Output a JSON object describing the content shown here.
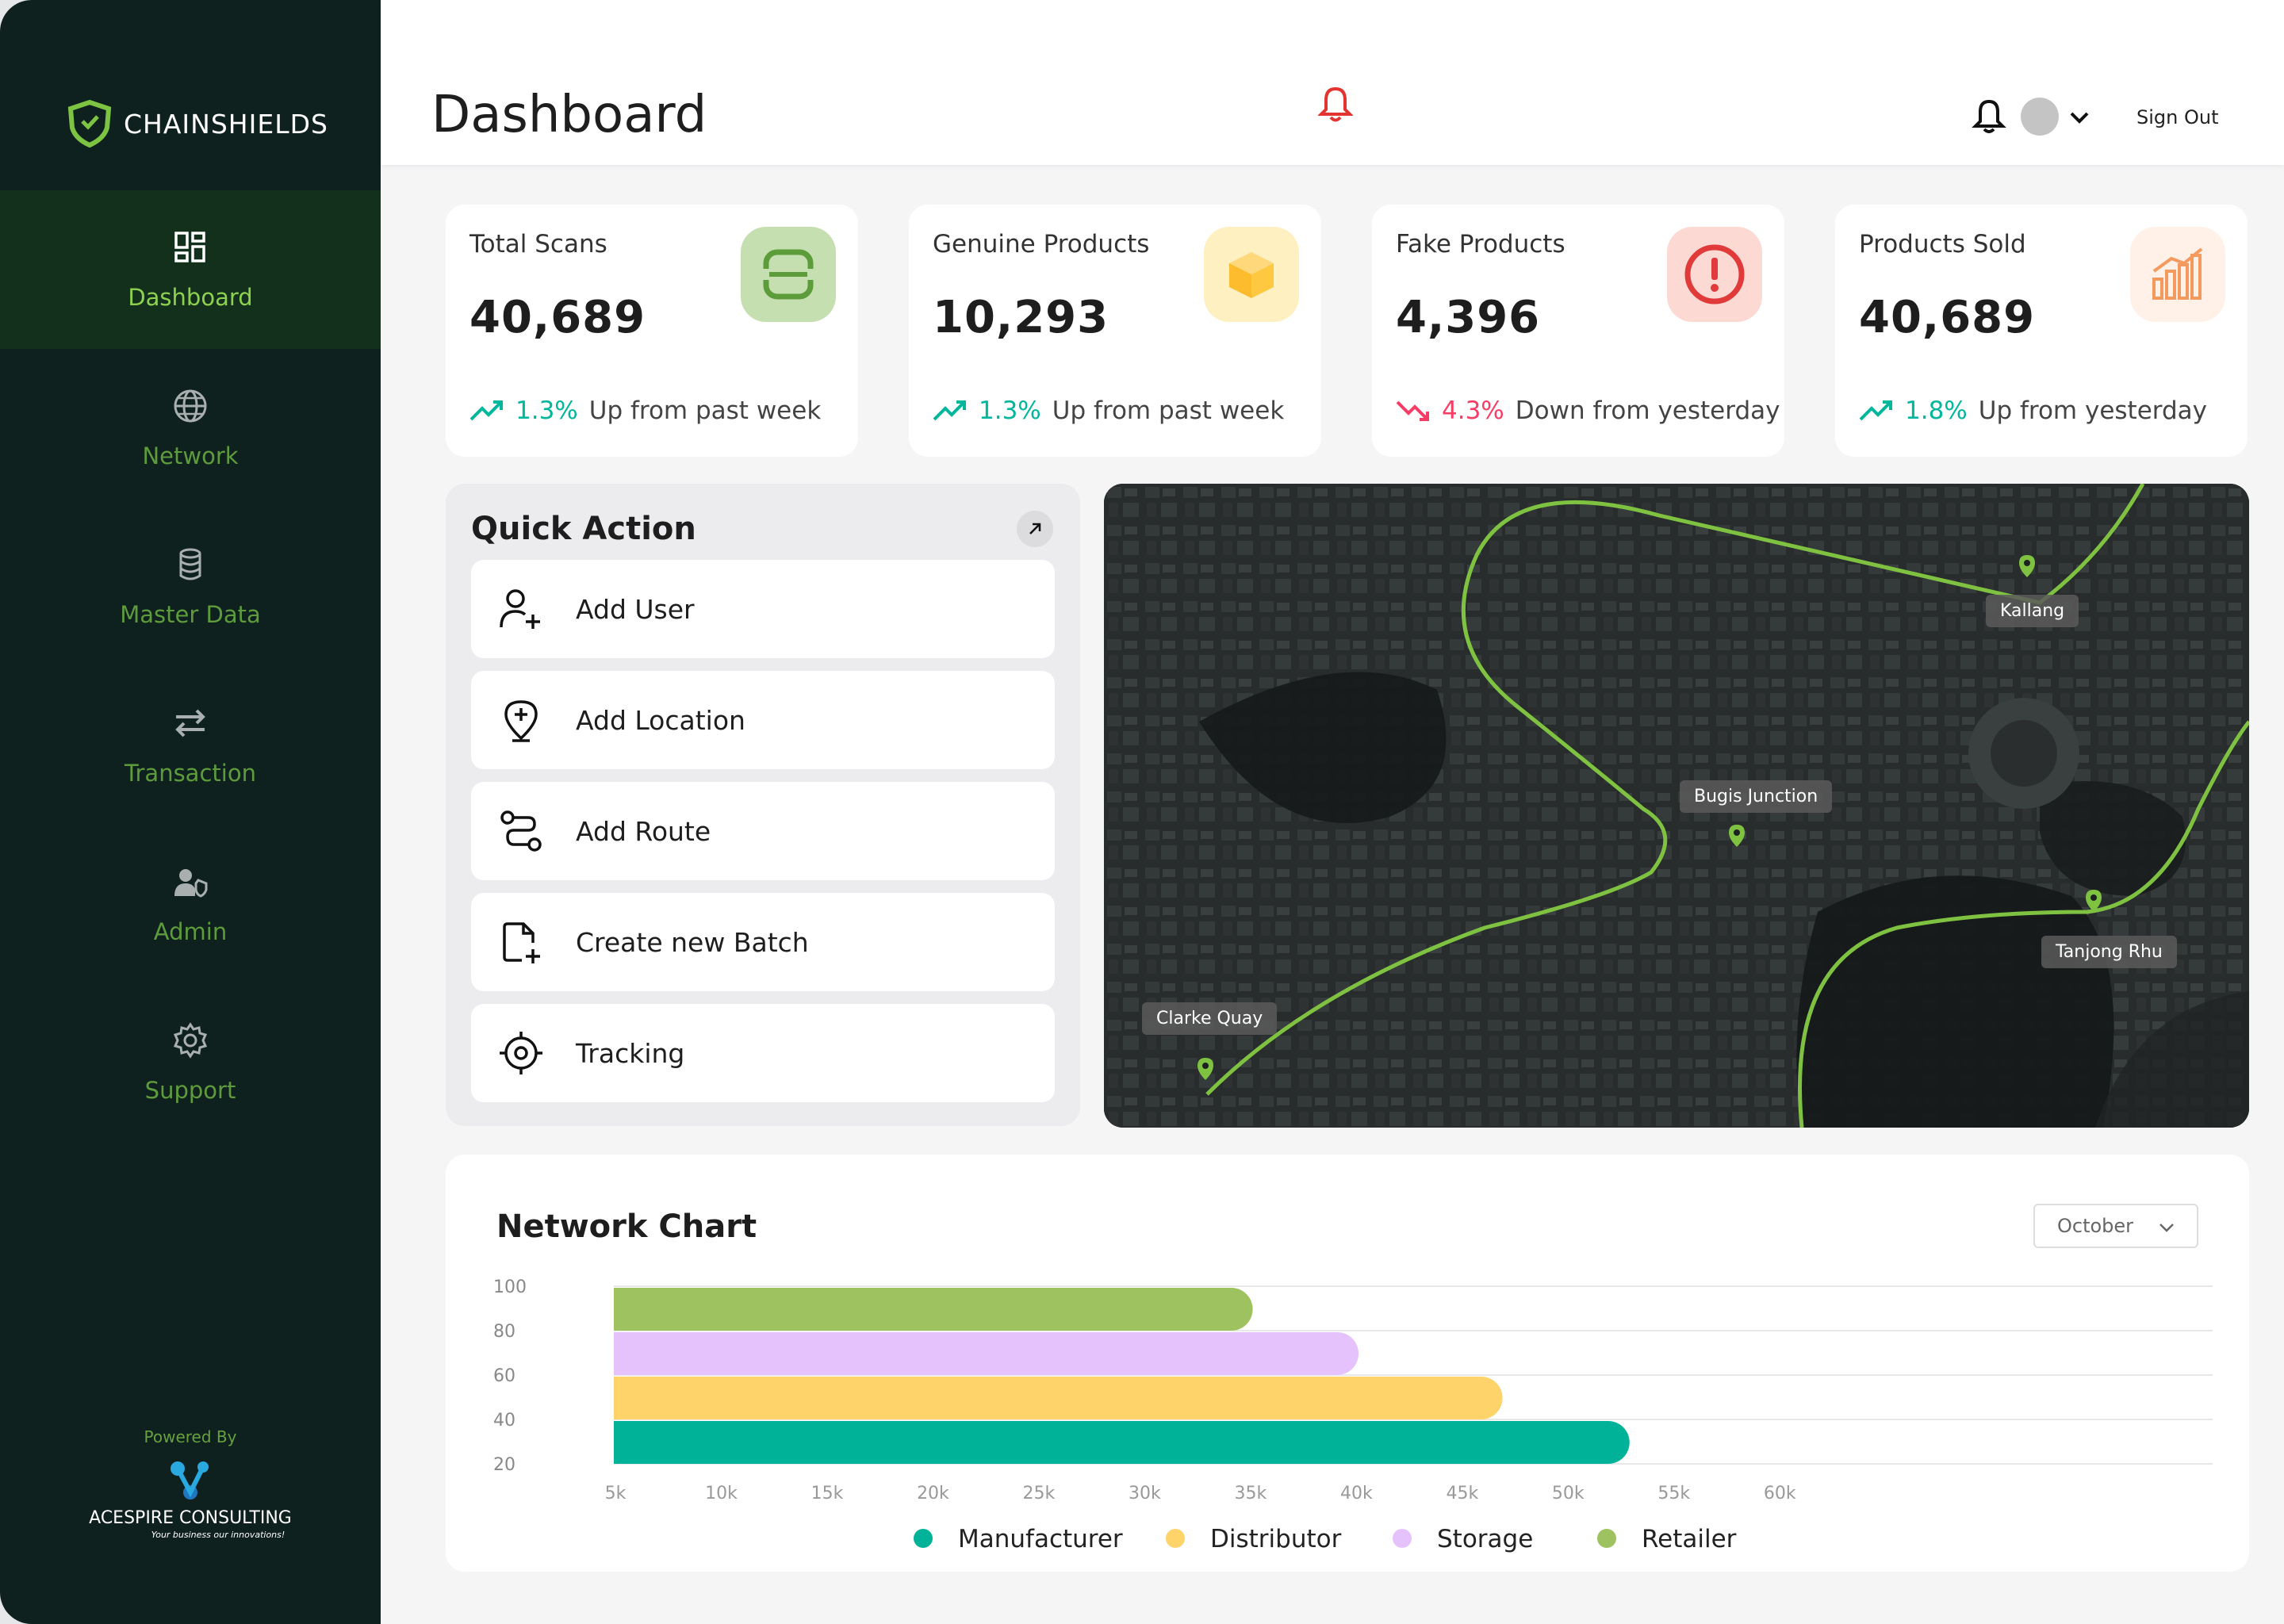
{
  "brand": {
    "name": "CHAINSHIELDS"
  },
  "sidebar": {
    "items": [
      {
        "label": "Dashboard",
        "icon": "dashboard-icon",
        "active": true
      },
      {
        "label": "Network",
        "icon": "globe-icon",
        "active": false
      },
      {
        "label": "Master Data",
        "icon": "database-icon",
        "active": false
      },
      {
        "label": "Transaction",
        "icon": "transfer-icon",
        "active": false
      },
      {
        "label": "Admin",
        "icon": "admin-icon",
        "active": false
      },
      {
        "label": "Support",
        "icon": "gear-icon",
        "active": false
      }
    ],
    "powered_by": "Powered By",
    "company": "ACESPIRE CONSULTING",
    "company_tagline": "Your business our innovations!"
  },
  "header": {
    "title": "Dashboard",
    "sign_out": "Sign Out"
  },
  "stats": [
    {
      "label": "Total Scans",
      "value": "40,689",
      "pct": "1.3%",
      "trend_text": "Up from past week",
      "direction": "up",
      "icon": "scan-icon",
      "icon_bg": "#c6dfb0",
      "icon_color": "#5c9c3a"
    },
    {
      "label": "Genuine Products",
      "value": "10,293",
      "pct": "1.3%",
      "trend_text": "Up from past week",
      "direction": "up",
      "icon": "box-icon",
      "icon_bg": "#fff0c2",
      "icon_color": "#fdbb2e"
    },
    {
      "label": "Fake Products",
      "value": "4,396",
      "pct": "4.3%",
      "trend_text": "Down from yesterday",
      "direction": "down",
      "icon": "alert-icon",
      "icon_bg": "#fdd9d3",
      "icon_color": "#e03a3a"
    },
    {
      "label": "Products Sold",
      "value": "40,689",
      "pct": "1.8%",
      "trend_text": "Up from yesterday",
      "direction": "up",
      "icon": "bar-chart-icon",
      "icon_bg": "#fff1e8",
      "icon_color": "#f59a5f"
    }
  ],
  "quick_action": {
    "title": "Quick Action",
    "items": [
      {
        "label": "Add User",
        "icon": "add-user-icon"
      },
      {
        "label": "Add Location",
        "icon": "add-location-icon"
      },
      {
        "label": "Add Route",
        "icon": "route-icon"
      },
      {
        "label": "Create new Batch",
        "icon": "new-file-icon"
      },
      {
        "label": "Tracking",
        "icon": "target-icon"
      }
    ]
  },
  "map": {
    "locations": [
      "Kallang",
      "Bugis Junction",
      "Tanjong Rhu",
      "Clarke Quay"
    ]
  },
  "chart_data": {
    "type": "bar",
    "orientation": "horizontal",
    "title": "Network Chart",
    "month_filter": "October",
    "y_ticks": [
      "100",
      "80",
      "60",
      "40",
      "20"
    ],
    "x_ticks": [
      "5k",
      "10k",
      "15k",
      "20k",
      "25k",
      "30k",
      "35k",
      "40k",
      "45k",
      "50k",
      "55k",
      "60k"
    ],
    "xlim": [
      5000,
      62500
    ],
    "series": [
      {
        "name": "Retailer",
        "value": 36000,
        "color": "#9dc25f"
      },
      {
        "name": "Storage",
        "value": 41000,
        "color": "#e5c2fb"
      },
      {
        "name": "Distributor",
        "value": 47800,
        "color": "#fdd36a"
      },
      {
        "name": "Manufacturer",
        "value": 53800,
        "color": "#00b298"
      }
    ],
    "legend": [
      {
        "name": "Manufacturer",
        "color": "#00b298"
      },
      {
        "name": "Distributor",
        "color": "#fdd36a"
      },
      {
        "name": "Storage",
        "color": "#e5c2fb"
      },
      {
        "name": "Retailer",
        "color": "#9dc25f"
      }
    ],
    "legend_position": "bottom",
    "grid": true
  }
}
